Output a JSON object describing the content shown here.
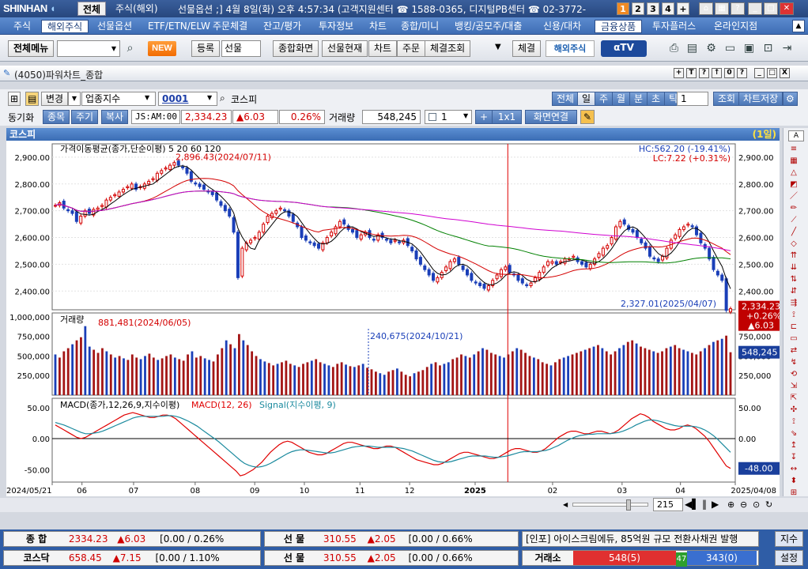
{
  "titlebar": {
    "logo": "SHINHAN",
    "tabs": [
      "전체",
      "주식(해외)"
    ],
    "text": "선물옵션 ;] 4월 8일(화) 오후 4:57:34 (고객지원센터 ☎ 1588-0365, 디지털PB센터 ☎ 02-3772-",
    "numbers": [
      "1",
      "2",
      "3",
      "4",
      "+"
    ]
  },
  "menu": [
    "주식",
    "해외주식",
    "선물옵션",
    "ETF/ETN/ELW",
    "주문체결",
    "잔고/평가",
    "투자정보",
    "차트",
    "종합/미니",
    "뱅킹/공모주/대출",
    "신용/대차",
    "금융상품",
    "투자플러스",
    "온라인지점"
  ],
  "toolbar": {
    "all_menu": "전체메뉴",
    "new_badge": "NEW",
    "register": "등록",
    "select": "선물",
    "buttons": [
      "종합화면",
      "선물현재",
      "차트",
      "주문",
      "체결조회"
    ],
    "settle": "체결",
    "overseas": "해외주식",
    "atv": "αTV"
  },
  "window": {
    "title": "(4050)파워차트_종합",
    "controls": [
      "+",
      "T",
      "?",
      "↑",
      "0",
      "?",
      "_",
      "□",
      "X"
    ]
  },
  "controls1": {
    "change": "변경",
    "category": "업종지수",
    "code": "0001",
    "name": "코스피",
    "periods": [
      "전체",
      "일",
      "주",
      "월",
      "분",
      "초",
      "틱"
    ],
    "period_count": "1",
    "query": "조회",
    "save": "차트저장"
  },
  "controls2": {
    "sync": "동기화",
    "tabs": [
      "종목",
      "주기",
      "복사"
    ],
    "time": "JS:AM:00",
    "price": "2,334.23",
    "change": "▲6.03",
    "rate": "0.26%",
    "volume_label": "거래량",
    "volume": "548,245",
    "count": "1",
    "layout": "1x1",
    "link": "화면연결"
  },
  "chart_header": {
    "name": "코스피",
    "period": "(1일)"
  },
  "chart_data": {
    "type": "line",
    "price_panel": {
      "legend": "가격이동평균(종가,단순이평) 5 20 60 120",
      "ma_periods": [
        5,
        20,
        60,
        120
      ],
      "ma_colors": [
        "#000000",
        "#d40000",
        "#008000",
        "#d000d0"
      ],
      "ylim": [
        2330,
        2950
      ],
      "yticks": [
        "2,900.00",
        "2,800.00",
        "2,700.00",
        "2,600.00",
        "2,500.00",
        "2,400.00"
      ],
      "hc": "HC:562.20 (-19.41%)",
      "lc": "LC:7.22 (+0.31%)",
      "high_note": "2,896.43(2024/07/11)",
      "low_note": "2,327.01(2025/04/07)",
      "last_price": "2,334.23",
      "last_rate": "+0.26%",
      "last_change": "▲6.03",
      "close": [
        2720,
        2730,
        2710,
        2700,
        2690,
        2660,
        2680,
        2700,
        2690,
        2705,
        2710,
        2720,
        2740,
        2750,
        2760,
        2770,
        2780,
        2790,
        2800,
        2780,
        2790,
        2800,
        2810,
        2820,
        2840,
        2850,
        2860,
        2870,
        2880,
        2870,
        2860,
        2840,
        2810,
        2800,
        2790,
        2780,
        2770,
        2760,
        2740,
        2720,
        2700,
        2680,
        2620,
        2450,
        2560,
        2580,
        2590,
        2600,
        2620,
        2650,
        2680,
        2690,
        2700,
        2710,
        2700,
        2680,
        2660,
        2640,
        2600,
        2590,
        2580,
        2570,
        2560,
        2580,
        2600,
        2620,
        2640,
        2660,
        2650,
        2630,
        2620,
        2600,
        2610,
        2620,
        2600,
        2590,
        2610,
        2600,
        2590,
        2580,
        2590,
        2580,
        2590,
        2570,
        2550,
        2520,
        2500,
        2480,
        2460,
        2440,
        2450,
        2470,
        2490,
        2510,
        2520,
        2500,
        2480,
        2460,
        2440,
        2430,
        2420,
        2410,
        2420,
        2440,
        2460,
        2480,
        2490,
        2470,
        2460,
        2440,
        2430,
        2420,
        2430,
        2450,
        2470,
        2490,
        2510,
        2510,
        2500,
        2510,
        2520,
        2520,
        2530,
        2510,
        2500,
        2490,
        2500,
        2520,
        2540,
        2560,
        2570,
        2600,
        2640,
        2660,
        2650,
        2630,
        2620,
        2600,
        2580,
        2560,
        2530,
        2520,
        2510,
        2530,
        2560,
        2590,
        2610,
        2630,
        2640,
        2650,
        2640,
        2610,
        2580,
        2560,
        2520,
        2480,
        2460,
        2440,
        2328,
        2334
      ],
      "highlight_x_frac": 0.667
    },
    "volume_panel": {
      "legend": "거래량",
      "ylim": [
        0,
        1050000
      ],
      "yticks": [
        "1,000,000",
        "750,000",
        "500,000",
        "250,000"
      ],
      "high_note": "881,481(2024/06/05)",
      "low_note": "240,675(2024/10/21)",
      "last_value": "548,245",
      "values": [
        520000,
        480000,
        560000,
        600000,
        650000,
        700000,
        740000,
        881481,
        620000,
        580000,
        540000,
        600000,
        560000,
        520000,
        480000,
        500000,
        470000,
        450000,
        520000,
        480000,
        460000,
        500000,
        530000,
        480000,
        450000,
        470000,
        500000,
        520000,
        480000,
        460000,
        440000,
        520000,
        560000,
        480000,
        500000,
        470000,
        450000,
        430000,
        520000,
        600000,
        700000,
        650000,
        600000,
        780000,
        700000,
        640000,
        560000,
        500000,
        460000,
        430000,
        410000,
        380000,
        400000,
        420000,
        440000,
        400000,
        380000,
        360000,
        400000,
        420000,
        440000,
        460000,
        420000,
        400000,
        380000,
        360000,
        400000,
        420000,
        390000,
        370000,
        360000,
        380000,
        400000,
        350000,
        330000,
        300000,
        280000,
        260000,
        300000,
        320000,
        340000,
        300000,
        260000,
        240675,
        280000,
        300000,
        320000,
        360000,
        400000,
        420000,
        380000,
        400000,
        420000,
        460000,
        480000,
        520000,
        500000,
        480000,
        520000,
        560000,
        600000,
        580000,
        540000,
        520000,
        500000,
        480000,
        520000,
        560000,
        600000,
        580000,
        540000,
        500000,
        480000,
        460000,
        420000,
        400000,
        380000,
        420000,
        460000,
        480000,
        500000,
        520000,
        540000,
        560000,
        580000,
        600000,
        620000,
        640000,
        600000,
        560000,
        520000,
        560000,
        600000,
        640000,
        680000,
        700000,
        660000,
        620000,
        600000,
        580000,
        560000,
        540000,
        560000,
        600000,
        620000,
        640000,
        600000,
        580000,
        560000,
        540000,
        520000,
        560000,
        600000,
        640000,
        680000,
        700000,
        720000,
        760000,
        548245
      ]
    },
    "macd_panel": {
      "legend_name": "MACD(종가,12,26,9,지수이평)",
      "legend_macd": "MACD(12, 26)",
      "legend_signal": "Signal(지수이평, 9)",
      "ylim": [
        -70,
        65
      ],
      "yticks": [
        "50.00",
        "0.00",
        "-50.00"
      ],
      "last_value": "-48.00",
      "macd": [
        22,
        18,
        14,
        10,
        6,
        2,
        0,
        2,
        6,
        10,
        14,
        18,
        22,
        26,
        30,
        34,
        38,
        40,
        42,
        40,
        38,
        36,
        34,
        34,
        36,
        38,
        38,
        36,
        32,
        26,
        20,
        14,
        8,
        2,
        -4,
        -10,
        -16,
        -22,
        -28,
        -34,
        -40,
        -46,
        -52,
        -60,
        -58,
        -54,
        -50,
        -44,
        -38,
        -30,
        -22,
        -16,
        -10,
        -6,
        -4,
        -6,
        -10,
        -14,
        -18,
        -22,
        -24,
        -26,
        -26,
        -24,
        -20,
        -16,
        -12,
        -8,
        -6,
        -6,
        -8,
        -10,
        -12,
        -14,
        -16,
        -16,
        -14,
        -12,
        -12,
        -14,
        -18,
        -22,
        -26,
        -30,
        -34,
        -36,
        -38,
        -40,
        -42,
        -42,
        -40,
        -36,
        -32,
        -28,
        -24,
        -22,
        -22,
        -24,
        -26,
        -28,
        -30,
        -32,
        -32,
        -30,
        -26,
        -22,
        -18,
        -16,
        -16,
        -18,
        -20,
        -22,
        -22,
        -20,
        -16,
        -10,
        -4,
        2,
        6,
        10,
        12,
        12,
        10,
        8,
        8,
        10,
        12,
        12,
        10,
        8,
        10,
        14,
        20,
        26,
        32,
        36,
        40,
        38,
        34,
        28,
        24,
        20,
        16,
        14,
        14,
        16,
        20,
        22,
        20,
        16,
        10,
        4,
        -4,
        -14,
        -24,
        -34,
        -44,
        -48
      ],
      "signal": [
        26,
        24,
        22,
        19,
        16,
        13,
        10,
        8,
        8,
        9,
        10,
        12,
        15,
        18,
        21,
        24,
        27,
        30,
        33,
        35,
        36,
        36,
        36,
        36,
        36,
        36,
        37,
        37,
        36,
        34,
        31,
        28,
        24,
        20,
        15,
        10,
        5,
        0,
        -5,
        -11,
        -17,
        -23,
        -29,
        -35,
        -40,
        -43,
        -45,
        -46,
        -45,
        -43,
        -40,
        -36,
        -32,
        -28,
        -24,
        -21,
        -19,
        -18,
        -18,
        -19,
        -20,
        -21,
        -22,
        -23,
        -23,
        -22,
        -20,
        -18,
        -16,
        -14,
        -13,
        -12,
        -12,
        -12,
        -13,
        -14,
        -14,
        -14,
        -14,
        -14,
        -15,
        -16,
        -18,
        -20,
        -23,
        -26,
        -29,
        -32,
        -35,
        -37,
        -38,
        -38,
        -37,
        -35,
        -33,
        -31,
        -29,
        -28,
        -28,
        -28,
        -28,
        -29,
        -30,
        -30,
        -29,
        -28,
        -26,
        -24,
        -22,
        -21,
        -21,
        -21,
        -21,
        -20,
        -19,
        -17,
        -14,
        -11,
        -7,
        -3,
        0,
        3,
        5,
        6,
        7,
        7,
        8,
        8,
        8,
        8,
        9,
        10,
        12,
        15,
        18,
        22,
        25,
        28,
        30,
        30,
        29,
        27,
        25,
        23,
        21,
        20,
        20,
        20,
        20,
        19,
        17,
        14,
        10,
        5,
        -1,
        -8,
        -15,
        -22
      ]
    },
    "xticks": [
      "2024/05/21",
      "06",
      "07",
      "08",
      "09",
      "10",
      "11",
      "12",
      "2025",
      "02",
      "03",
      "04",
      "2025/04/08"
    ]
  },
  "scroll": {
    "count": "215"
  },
  "bottom": {
    "row1": {
      "label1": "종 합",
      "v1": "2334.23",
      "c1": "▲6.03",
      "r1": "[0.00 / 0.26%",
      "label2": "선 물",
      "v2": "310.55",
      "c2": "▲2.05",
      "r2": "[0.00 / 0.66%",
      "news": "[인포] 아이스크림에듀, 85억원 규모 전환사채권 발행",
      "btn": "지수"
    },
    "row2": {
      "label1": "코스닥",
      "v1": "658.45",
      "c1": "▲7.15",
      "r1": "[0.00 / 1.10%",
      "label2": "선 물",
      "v2": "310.55",
      "c2": "▲2.05",
      "r2": "[0.00 / 0.66%",
      "trade": "거래소",
      "up": "548(5)",
      "mid": "47",
      "down": "343(0)",
      "btn": "설정"
    }
  }
}
